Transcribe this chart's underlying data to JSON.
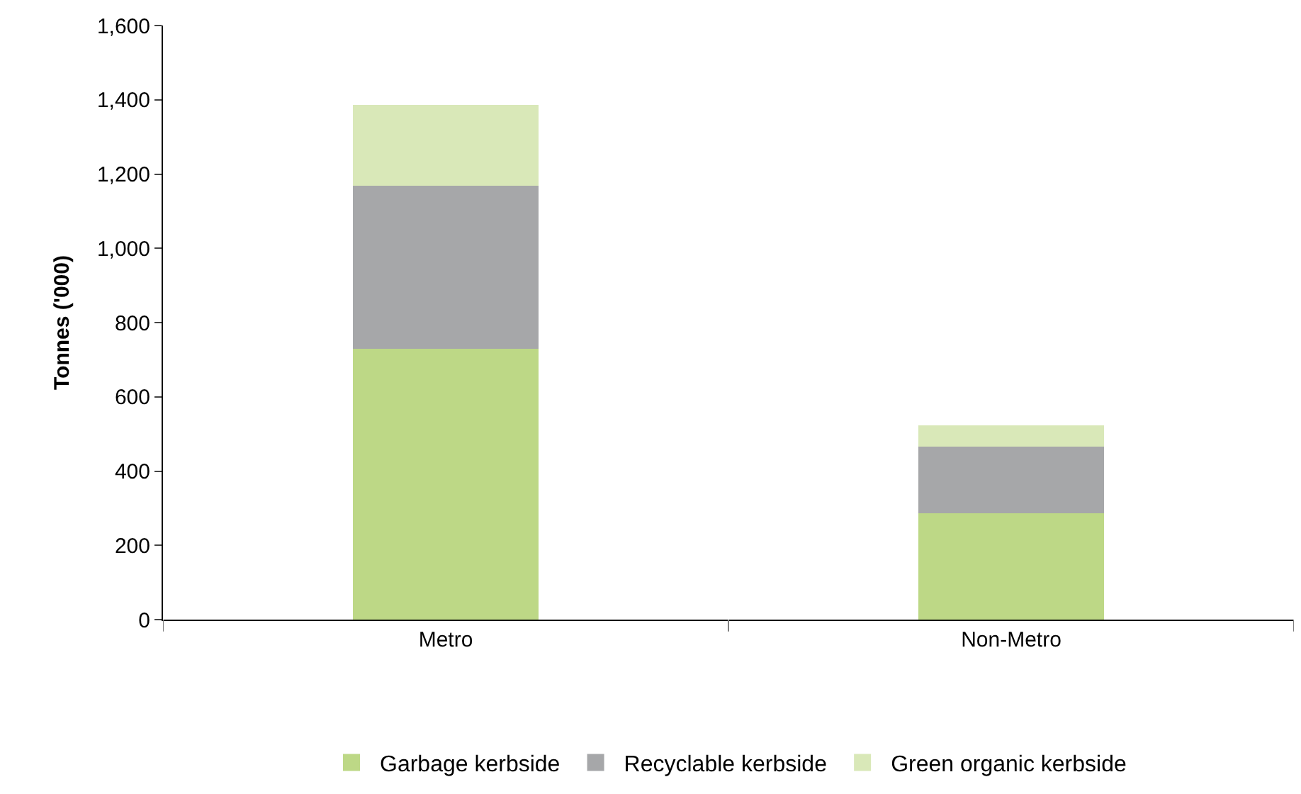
{
  "chart_data": {
    "type": "bar",
    "stacked": true,
    "ylabel": "Tonnes ('000)",
    "categories": [
      "Metro",
      "Non-Metro"
    ],
    "series": [
      {
        "name": "Garbage kerbside",
        "color": "#bdd886",
        "values": [
          730,
          285
        ]
      },
      {
        "name": "Recyclable kerbside",
        "color": "#a6a7a9",
        "values": [
          438,
          179
        ]
      },
      {
        "name": "Green organic kerbside",
        "color": "#d9e8b8",
        "values": [
          217,
          60
        ]
      }
    ],
    "ylim": [
      0,
      1600
    ],
    "yticks": [
      {
        "value": 0,
        "label": "0"
      },
      {
        "value": 200,
        "label": "200"
      },
      {
        "value": 400,
        "label": "400"
      },
      {
        "value": 600,
        "label": "600"
      },
      {
        "value": 800,
        "label": "800"
      },
      {
        "value": 1000,
        "label": "1,000"
      },
      {
        "value": 1200,
        "label": "1,200"
      },
      {
        "value": 1400,
        "label": "1,400"
      },
      {
        "value": 1600,
        "label": "1,600"
      }
    ],
    "legend": "bottom"
  }
}
